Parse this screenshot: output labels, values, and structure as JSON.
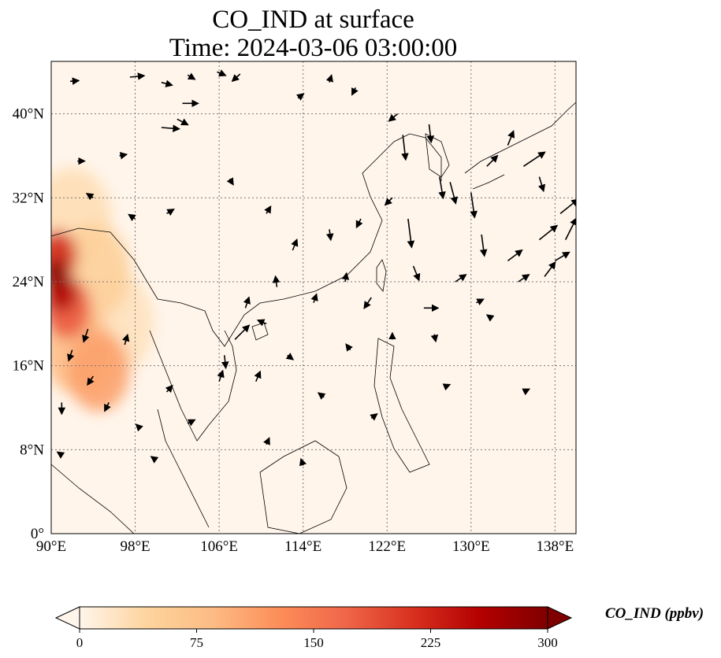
{
  "title": {
    "line1": "CO_IND at surface",
    "line2": "Time: 2024-03-06 03:00:00"
  },
  "map": {
    "variable": "CO_IND",
    "level": "surface",
    "lon_range": [
      90,
      140
    ],
    "lat_range": [
      0,
      45
    ],
    "lon_ticks": [
      {
        "value": 90,
        "label": "90°E"
      },
      {
        "value": 98,
        "label": "98°E"
      },
      {
        "value": 106,
        "label": "106°E"
      },
      {
        "value": 114,
        "label": "114°E"
      },
      {
        "value": 122,
        "label": "122°E"
      },
      {
        "value": 130,
        "label": "130°E"
      },
      {
        "value": 138,
        "label": "138°E"
      }
    ],
    "lat_ticks": [
      {
        "value": 0,
        "label": "0°"
      },
      {
        "value": 8,
        "label": "8°N"
      },
      {
        "value": 16,
        "label": "16°N"
      },
      {
        "value": 24,
        "label": "24°N"
      },
      {
        "value": 32,
        "label": "32°N"
      },
      {
        "value": 40,
        "label": "40°N"
      }
    ],
    "gridlines": true,
    "colormap": "OrRd",
    "background_color": "#fff5eb",
    "coastline_color": "#000000"
  },
  "colorbar": {
    "label": "CO_IND (ppbv)",
    "min": 0,
    "max": 300,
    "extend": "both",
    "ticks": [
      {
        "value": 0,
        "label": "0"
      },
      {
        "value": 75,
        "label": "75"
      },
      {
        "value": 150,
        "label": "150"
      },
      {
        "value": 225,
        "label": "225"
      },
      {
        "value": 300,
        "label": "300"
      }
    ],
    "colors": [
      "#fff5eb",
      "#fdd49e",
      "#fdbb84",
      "#fc8d59",
      "#ef6548",
      "#d7301f",
      "#b30000",
      "#7f0000"
    ]
  },
  "concentration_areas": [
    {
      "lon": 90.5,
      "lat": 24.8,
      "value": 300
    },
    {
      "lon": 91.0,
      "lat": 23.0,
      "value": 260
    },
    {
      "lon": 90.6,
      "lat": 26.5,
      "value": 220
    },
    {
      "lon": 91.5,
      "lat": 21.5,
      "value": 180
    },
    {
      "lon": 94.5,
      "lat": 15.5,
      "value": 110
    },
    {
      "lon": 92.5,
      "lat": 17.5,
      "value": 80
    },
    {
      "lon": 94.0,
      "lat": 25.0,
      "value": 50
    },
    {
      "lon": 92.0,
      "lat": 30.0,
      "value": 30
    },
    {
      "lon": 96.0,
      "lat": 20.0,
      "value": 25
    }
  ],
  "wind_vectors": [
    {
      "lon": 91.8,
      "lat": 43.1,
      "u": 1.2,
      "v": 0.1
    },
    {
      "lon": 97.5,
      "lat": 43.5,
      "u": 2.0,
      "v": 0.2
    },
    {
      "lon": 100.5,
      "lat": 43.0,
      "u": 1.5,
      "v": -0.4
    },
    {
      "lon": 102.5,
      "lat": 41.0,
      "u": 2.2,
      "v": 0.0
    },
    {
      "lon": 103.0,
      "lat": 43.7,
      "u": 1.0,
      "v": -0.6
    },
    {
      "lon": 105.8,
      "lat": 44.0,
      "u": 1.2,
      "v": -0.5
    },
    {
      "lon": 108.0,
      "lat": 43.8,
      "u": -1.1,
      "v": -1.0
    },
    {
      "lon": 100.5,
      "lat": 38.7,
      "u": 2.5,
      "v": -0.2
    },
    {
      "lon": 102.0,
      "lat": 39.5,
      "u": 1.5,
      "v": -0.8
    },
    {
      "lon": 96.5,
      "lat": 36.0,
      "u": 1.0,
      "v": 0.2
    },
    {
      "lon": 92.5,
      "lat": 35.5,
      "u": 1.0,
      "v": 0.0
    },
    {
      "lon": 94.0,
      "lat": 32.0,
      "u": -0.9,
      "v": 0.6
    },
    {
      "lon": 98.0,
      "lat": 30.0,
      "u": -0.9,
      "v": 0.6
    },
    {
      "lon": 101.0,
      "lat": 30.5,
      "u": 1.0,
      "v": 0.6
    },
    {
      "lon": 107.0,
      "lat": 33.8,
      "u": 0.5,
      "v": -0.8
    },
    {
      "lon": 110.5,
      "lat": 30.5,
      "u": 0.6,
      "v": 1.0
    },
    {
      "lon": 113.5,
      "lat": 41.5,
      "u": 0.8,
      "v": 0.6
    },
    {
      "lon": 116.5,
      "lat": 43.0,
      "u": 0.3,
      "v": 1.0
    },
    {
      "lon": 119.0,
      "lat": 42.5,
      "u": -0.5,
      "v": -1.0
    },
    {
      "lon": 123.0,
      "lat": 40.0,
      "u": -1.2,
      "v": -1.0
    },
    {
      "lon": 123.5,
      "lat": 38.0,
      "u": 0.4,
      "v": -3.5
    },
    {
      "lon": 126.0,
      "lat": 39.0,
      "u": 0.3,
      "v": -2.5
    },
    {
      "lon": 127.0,
      "lat": 34.0,
      "u": 0.5,
      "v": -3.0
    },
    {
      "lon": 128.0,
      "lat": 33.5,
      "u": 0.8,
      "v": -3.0
    },
    {
      "lon": 130.0,
      "lat": 32.5,
      "u": 0.5,
      "v": -3.5
    },
    {
      "lon": 131.5,
      "lat": 35.0,
      "u": 1.5,
      "v": 1.5
    },
    {
      "lon": 133.5,
      "lat": 37.0,
      "u": 0.8,
      "v": 2.0
    },
    {
      "lon": 135.0,
      "lat": 35.0,
      "u": 3.0,
      "v": 2.0
    },
    {
      "lon": 136.5,
      "lat": 34.0,
      "u": 0.6,
      "v": -2.0
    },
    {
      "lon": 138.5,
      "lat": 30.5,
      "u": 2.5,
      "v": 2.0
    },
    {
      "lon": 139.0,
      "lat": 28.0,
      "u": 1.5,
      "v": 3.0
    },
    {
      "lon": 136.5,
      "lat": 28.0,
      "u": 2.5,
      "v": 2.0
    },
    {
      "lon": 133.5,
      "lat": 26.0,
      "u": 2.0,
      "v": 1.5
    },
    {
      "lon": 131.0,
      "lat": 28.5,
      "u": 0.4,
      "v": -3.0
    },
    {
      "lon": 124.0,
      "lat": 30.0,
      "u": 0.5,
      "v": -4.0
    },
    {
      "lon": 122.5,
      "lat": 32.0,
      "u": -1.0,
      "v": -1.0
    },
    {
      "lon": 119.5,
      "lat": 30.0,
      "u": -0.6,
      "v": -1.2
    },
    {
      "lon": 116.5,
      "lat": 29.0,
      "u": 0.2,
      "v": -1.5
    },
    {
      "lon": 113.0,
      "lat": 27.0,
      "u": 0.6,
      "v": 1.5
    },
    {
      "lon": 111.5,
      "lat": 23.5,
      "u": -0.2,
      "v": 1.5
    },
    {
      "lon": 108.5,
      "lat": 21.5,
      "u": 0.5,
      "v": 1.5
    },
    {
      "lon": 107.5,
      "lat": 18.5,
      "u": 2.0,
      "v": 2.0
    },
    {
      "lon": 106.5,
      "lat": 17.0,
      "u": 0.2,
      "v": -1.8
    },
    {
      "lon": 106.0,
      "lat": 14.5,
      "u": 0.5,
      "v": 1.5
    },
    {
      "lon": 109.5,
      "lat": 14.5,
      "u": 0.6,
      "v": 1.4
    },
    {
      "lon": 110.5,
      "lat": 20.0,
      "u": -1.2,
      "v": 0.5
    },
    {
      "lon": 112.5,
      "lat": 17.0,
      "u": 0.8,
      "v": -0.6
    },
    {
      "lon": 115.0,
      "lat": 22.0,
      "u": 0.4,
      "v": 1.2
    },
    {
      "lon": 118.0,
      "lat": 24.0,
      "u": 0.2,
      "v": 1.2
    },
    {
      "lon": 120.5,
      "lat": 22.5,
      "u": -1.0,
      "v": -1.5
    },
    {
      "lon": 124.5,
      "lat": 25.5,
      "u": 0.8,
      "v": -2.0
    },
    {
      "lon": 125.5,
      "lat": 21.5,
      "u": 2.0,
      "v": 0.0
    },
    {
      "lon": 128.5,
      "lat": 24.0,
      "u": 1.5,
      "v": 1.0
    },
    {
      "lon": 130.5,
      "lat": 22.0,
      "u": 1.0,
      "v": 0.5
    },
    {
      "lon": 134.5,
      "lat": 24.0,
      "u": 1.5,
      "v": 1.0
    },
    {
      "lon": 137.0,
      "lat": 24.5,
      "u": 1.5,
      "v": 2.0
    },
    {
      "lon": 138.0,
      "lat": 26.0,
      "u": 2.0,
      "v": 1.2
    },
    {
      "lon": 132.0,
      "lat": 20.5,
      "u": -0.7,
      "v": 0.5
    },
    {
      "lon": 126.5,
      "lat": 19.0,
      "u": 0.2,
      "v": -1.0
    },
    {
      "lon": 122.5,
      "lat": 18.5,
      "u": 0.0,
      "v": 0.9
    },
    {
      "lon": 118.5,
      "lat": 17.5,
      "u": -0.6,
      "v": 0.8
    },
    {
      "lon": 116.0,
      "lat": 13.0,
      "u": -0.8,
      "v": 0.6
    },
    {
      "lon": 120.5,
      "lat": 11.0,
      "u": 0.8,
      "v": 0.6
    },
    {
      "lon": 127.5,
      "lat": 14.0,
      "u": 0.7,
      "v": 0.3
    },
    {
      "lon": 135.0,
      "lat": 13.5,
      "u": 0.8,
      "v": 0.4
    },
    {
      "lon": 110.5,
      "lat": 8.5,
      "u": 0.4,
      "v": 0.9
    },
    {
      "lon": 114.0,
      "lat": 6.5,
      "u": -0.3,
      "v": 0.9
    },
    {
      "lon": 103.0,
      "lat": 10.5,
      "u": 1.0,
      "v": 0.5
    },
    {
      "lon": 101.0,
      "lat": 13.5,
      "u": 0.8,
      "v": 0.9
    },
    {
      "lon": 93.5,
      "lat": 19.5,
      "u": -0.6,
      "v": -1.8
    },
    {
      "lon": 92.0,
      "lat": 17.5,
      "u": -0.5,
      "v": -1.5
    },
    {
      "lon": 94.0,
      "lat": 15.0,
      "u": -0.8,
      "v": -1.2
    },
    {
      "lon": 91.0,
      "lat": 12.5,
      "u": 0.0,
      "v": -1.6
    },
    {
      "lon": 95.5,
      "lat": 12.5,
      "u": -0.6,
      "v": -1.2
    },
    {
      "lon": 97.0,
      "lat": 18.0,
      "u": 0.4,
      "v": 1.4
    },
    {
      "lon": 98.5,
      "lat": 10.0,
      "u": -0.6,
      "v": 0.6
    },
    {
      "lon": 100.0,
      "lat": 7.0,
      "u": -0.7,
      "v": 0.5
    },
    {
      "lon": 91.0,
      "lat": 7.5,
      "u": -0.6,
      "v": 0.4
    }
  ]
}
